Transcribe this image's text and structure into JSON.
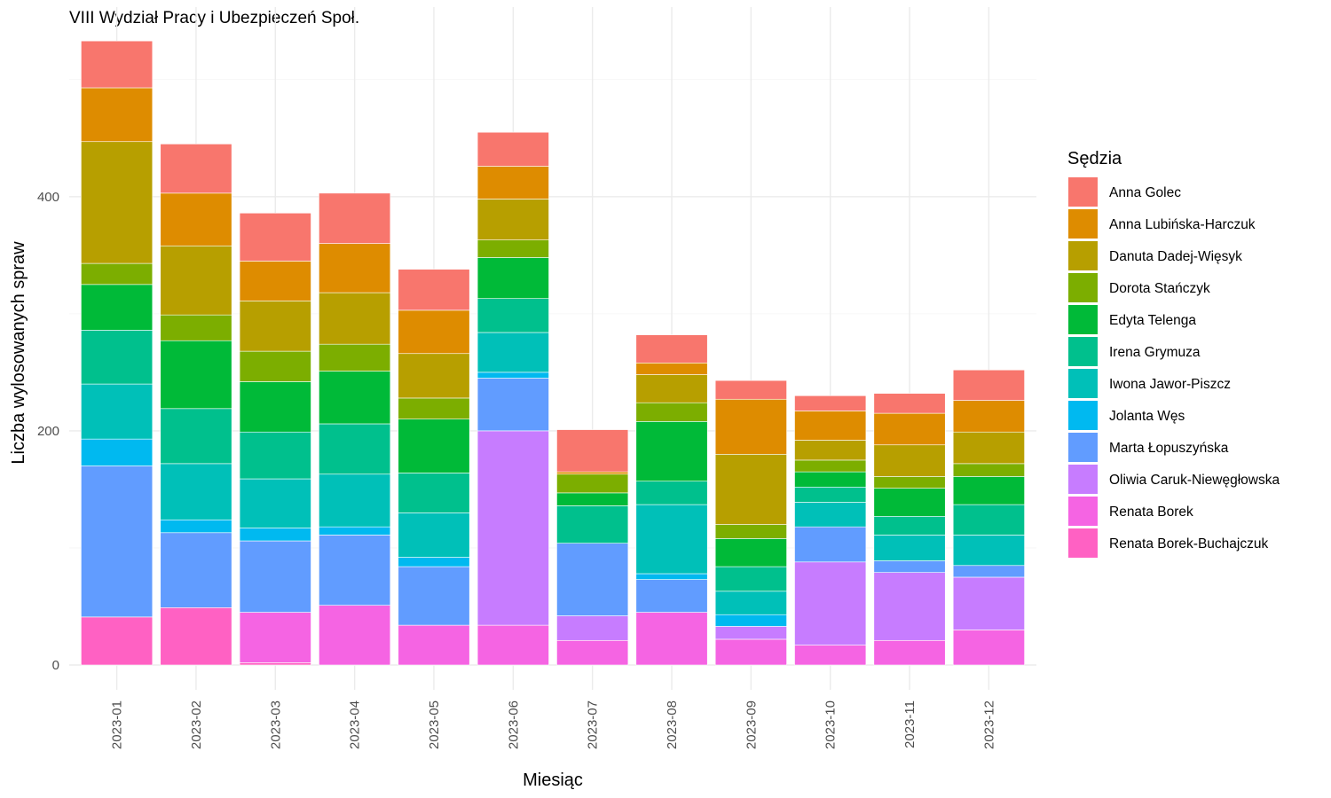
{
  "chart_data": {
    "type": "bar",
    "stacked": true,
    "title": "VIII Wydział Pracy i Ubezpieczeń Społ.",
    "xlabel": "Miesiąc",
    "ylabel": "Liczba wylosowanych spraw",
    "ylim": [
      0,
      540
    ],
    "yticks": [
      0,
      200,
      400
    ],
    "grid": true,
    "legend_position": "right",
    "legend_title": "Sędzia",
    "categories": [
      "2023-01",
      "2023-02",
      "2023-03",
      "2023-04",
      "2023-05",
      "2023-06",
      "2023-07",
      "2023-08",
      "2023-09",
      "2023-10",
      "2023-11",
      "2023-12"
    ],
    "series": [
      {
        "name": "Renata Borek-Buchajczuk",
        "color": "#FF61C3",
        "values": [
          41,
          49,
          2,
          0,
          0,
          0,
          0,
          0,
          0,
          0,
          0,
          0
        ]
      },
      {
        "name": "Renata Borek",
        "color": "#F564E3",
        "values": [
          0,
          0,
          43,
          51,
          34,
          34,
          21,
          45,
          22,
          17,
          21,
          30
        ]
      },
      {
        "name": "Oliwia Caruk-Niewęgłowska",
        "color": "#C77CFF",
        "values": [
          0,
          0,
          0,
          0,
          0,
          166,
          21,
          0,
          11,
          71,
          58,
          45
        ]
      },
      {
        "name": "Marta Łopuszyńska",
        "color": "#619CFF",
        "values": [
          129,
          64,
          61,
          60,
          50,
          45,
          62,
          28,
          0,
          30,
          10,
          10
        ]
      },
      {
        "name": "Jolanta Węs",
        "color": "#00B9F0",
        "values": [
          23,
          11,
          11,
          7,
          8,
          5,
          0,
          5,
          10,
          0,
          0,
          0
        ]
      },
      {
        "name": "Iwona Jawor-Piszcz",
        "color": "#00C0B8",
        "values": [
          47,
          48,
          42,
          45,
          38,
          34,
          0,
          59,
          20,
          21,
          22,
          26
        ]
      },
      {
        "name": "Irena Grymuza",
        "color": "#00C08D",
        "values": [
          46,
          47,
          40,
          43,
          34,
          29,
          32,
          20,
          21,
          13,
          16,
          26
        ]
      },
      {
        "name": "Edyta Telenga",
        "color": "#00BA38",
        "values": [
          39,
          58,
          43,
          45,
          46,
          35,
          11,
          51,
          24,
          13,
          24,
          24
        ]
      },
      {
        "name": "Dorota Stańczyk",
        "color": "#7CAE00",
        "values": [
          18,
          22,
          26,
          23,
          18,
          15,
          16,
          16,
          12,
          10,
          10,
          11
        ]
      },
      {
        "name": "Danuta Dadej-Więsyk",
        "color": "#B79F00",
        "values": [
          104,
          59,
          43,
          44,
          38,
          35,
          0,
          24,
          60,
          17,
          27,
          27
        ]
      },
      {
        "name": "Anna Lubińska-Harczuk",
        "color": "#DE8C00",
        "values": [
          46,
          45,
          34,
          42,
          37,
          28,
          2,
          10,
          47,
          25,
          27,
          27
        ]
      },
      {
        "name": "Anna Golec",
        "color": "#F8766D",
        "values": [
          40,
          42,
          41,
          43,
          35,
          29,
          36,
          24,
          16,
          13,
          17,
          26
        ]
      }
    ]
  }
}
